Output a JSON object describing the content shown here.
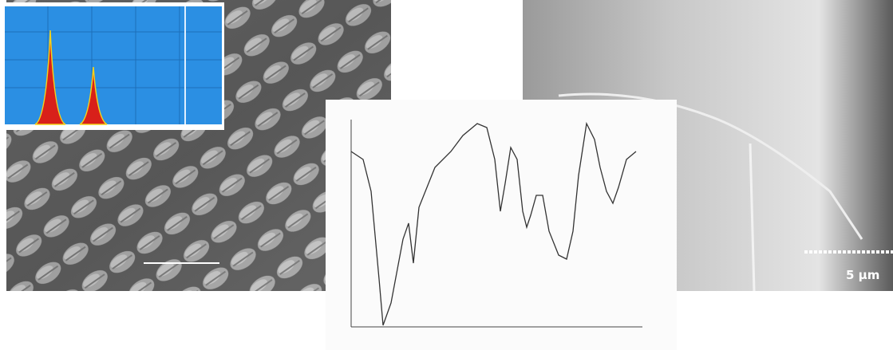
{
  "scale_bars": [
    "5 μm"
  ]
}
